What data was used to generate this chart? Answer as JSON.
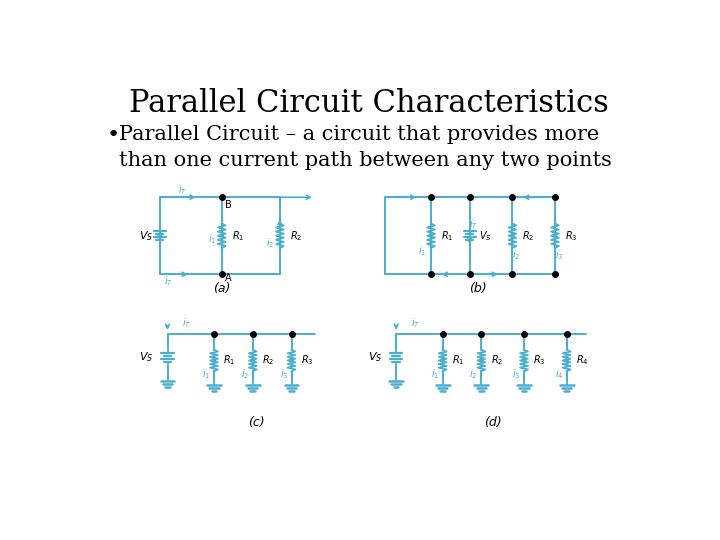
{
  "title": "Parallel Circuit Characteristics",
  "bullet": "Parallel Circuit – a circuit that provides more\nthan one current path between any two points",
  "bg_color": "#ffffff",
  "title_fontsize": 22,
  "bullet_fontsize": 15,
  "circuit_color": "#4AAFCF",
  "text_color": "#000000",
  "label_a": "(a)",
  "label_b": "(b)",
  "label_c": "(c)",
  "label_d": "(d)"
}
